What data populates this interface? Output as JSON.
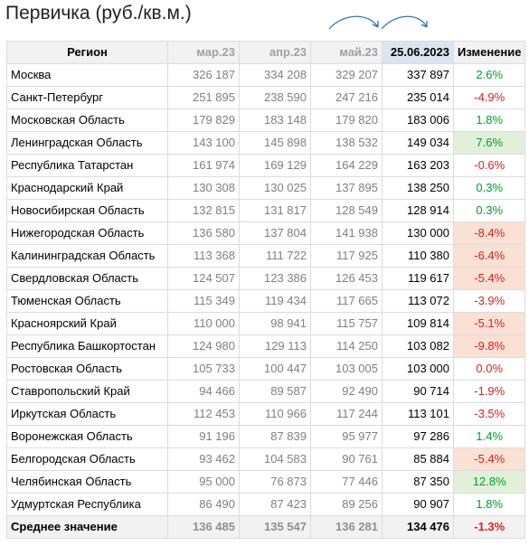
{
  "title": "Первичка (руб./кв.м.)",
  "headers": {
    "region": "Регион",
    "months": [
      "мар.23",
      "апр.23",
      "май.23"
    ],
    "current": "25.06.2023",
    "change": "Изменение"
  },
  "rows": [
    {
      "region": "Москва",
      "values": [
        "326 187",
        "334 208",
        "329 207"
      ],
      "current": "337 897",
      "change": "2.6%",
      "trend": "pos",
      "highlight": false
    },
    {
      "region": "Санкт-Петербург",
      "values": [
        "251 895",
        "238 590",
        "247 216"
      ],
      "current": "235 014",
      "change": "-4.9%",
      "trend": "neg",
      "highlight": false
    },
    {
      "region": "Московская Область",
      "values": [
        "179 829",
        "183 148",
        "179 820"
      ],
      "current": "183 006",
      "change": "1.8%",
      "trend": "pos",
      "highlight": false
    },
    {
      "region": "Ленинградская Область",
      "values": [
        "143 100",
        "145 898",
        "138 532"
      ],
      "current": "149 034",
      "change": "7.6%",
      "trend": "pos",
      "highlight": true
    },
    {
      "region": "Республика Татарстан",
      "values": [
        "161 974",
        "169 129",
        "164 229"
      ],
      "current": "163 203",
      "change": "-0.6%",
      "trend": "neg",
      "highlight": false
    },
    {
      "region": "Краснодарский Край",
      "values": [
        "130 308",
        "130 025",
        "137 895"
      ],
      "current": "138 250",
      "change": "0.3%",
      "trend": "pos",
      "highlight": false
    },
    {
      "region": "Новосибирская Область",
      "values": [
        "132 815",
        "131 817",
        "128 549"
      ],
      "current": "128 914",
      "change": "0.3%",
      "trend": "pos",
      "highlight": false
    },
    {
      "region": "Нижегородская Область",
      "values": [
        "136 580",
        "137 804",
        "141 938"
      ],
      "current": "130 000",
      "change": "-8.4%",
      "trend": "neg",
      "highlight": true
    },
    {
      "region": "Калининградская Область",
      "values": [
        "113 368",
        "111 722",
        "117 925"
      ],
      "current": "110 380",
      "change": "-6.4%",
      "trend": "neg",
      "highlight": true
    },
    {
      "region": "Свердловская Область",
      "values": [
        "124 507",
        "123 386",
        "126 453"
      ],
      "current": "119 617",
      "change": "-5.4%",
      "trend": "neg",
      "highlight": true
    },
    {
      "region": "Тюменская Область",
      "values": [
        "115 349",
        "119 434",
        "117 665"
      ],
      "current": "113 072",
      "change": "-3.9%",
      "trend": "neg",
      "highlight": false
    },
    {
      "region": "Красноярский Край",
      "values": [
        "110 000",
        "98 941",
        "115 757"
      ],
      "current": "109 814",
      "change": "-5.1%",
      "trend": "neg",
      "highlight": true
    },
    {
      "region": "Республика Башкортостан",
      "values": [
        "124 980",
        "129 113",
        "114 250"
      ],
      "current": "103 082",
      "change": "-9.8%",
      "trend": "neg",
      "highlight": true
    },
    {
      "region": "Ростовская Область",
      "values": [
        "105 733",
        "100 447",
        "103 005"
      ],
      "current": "103 000",
      "change": "0.0%",
      "trend": "zero",
      "highlight": false
    },
    {
      "region": "Ставропольский Край",
      "values": [
        "94 466",
        "89 587",
        "92 490"
      ],
      "current": "90 714",
      "change": "-1.9%",
      "trend": "neg",
      "highlight": false
    },
    {
      "region": "Иркутская Область",
      "values": [
        "112 453",
        "110 966",
        "117 244"
      ],
      "current": "113 101",
      "change": "-3.5%",
      "trend": "neg",
      "highlight": false
    },
    {
      "region": "Воронежская Область",
      "values": [
        "91 196",
        "87 839",
        "95 977"
      ],
      "current": "97 286",
      "change": "1.4%",
      "trend": "pos",
      "highlight": false
    },
    {
      "region": "Белгородская Область",
      "values": [
        "93 462",
        "104 583",
        "90 761"
      ],
      "current": "85 884",
      "change": "-5.4%",
      "trend": "neg",
      "highlight": true
    },
    {
      "region": "Челябинская Область",
      "values": [
        "95 000",
        "76 873",
        "77 446"
      ],
      "current": "87 350",
      "change": "12.8%",
      "trend": "pos",
      "highlight": true
    },
    {
      "region": "Удмуртская Республика",
      "values": [
        "86 490",
        "87 423",
        "89 256"
      ],
      "current": "90 907",
      "change": "1.8%",
      "trend": "pos",
      "highlight": false
    }
  ],
  "average": {
    "label": "Среднее значение",
    "values": [
      "136 485",
      "135 547",
      "136 281"
    ],
    "current": "134 476",
    "change": "-1.3%",
    "trend": "neg"
  },
  "colors": {
    "positive": "#00a02a",
    "negative": "#e02020",
    "highlight_positive": "#e2f0d9",
    "highlight_negative": "#fbe0d4",
    "current_header": "#dbe5f1",
    "arrow": "#2e75b6"
  }
}
